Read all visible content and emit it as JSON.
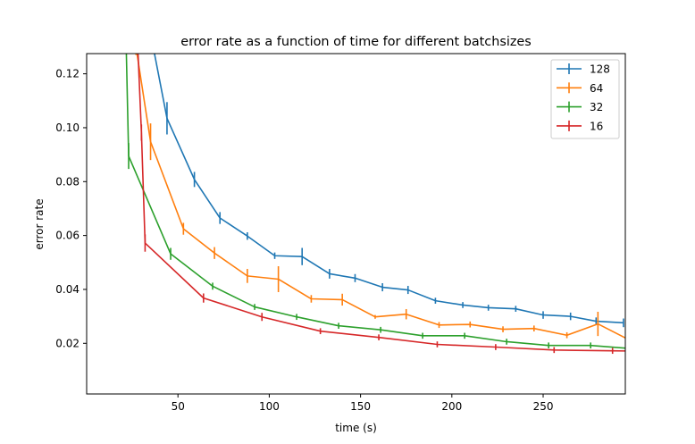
{
  "chart_data": {
    "type": "line",
    "title": "error rate as a function of time for different batchsizes",
    "xlabel": "time (s)",
    "ylabel": "error rate",
    "xlim": [
      0,
      295
    ],
    "ylim": [
      0.0012,
      0.1275
    ],
    "xticks": [
      50,
      100,
      150,
      200,
      250
    ],
    "xtick_labels": [
      "50",
      "100",
      "150",
      "200",
      "250"
    ],
    "yticks": [
      0.02,
      0.04,
      0.06,
      0.08,
      0.1,
      0.12
    ],
    "ytick_labels": [
      "0.02",
      "0.04",
      "0.06",
      "0.08",
      "0.10",
      "0.12"
    ],
    "grid": false,
    "legend_position": "top-right",
    "error_bars": true,
    "series": [
      {
        "name": "128",
        "color": "#1f77b4",
        "x": [
          30,
          44,
          59,
          73,
          88,
          103,
          118,
          133,
          147,
          162,
          176,
          191,
          206,
          220,
          235,
          250,
          265,
          279,
          294
        ],
        "y": [
          0.1525,
          0.1035,
          0.0808,
          0.0665,
          0.0598,
          0.0525,
          0.0522,
          0.0458,
          0.0442,
          0.0408,
          0.0398,
          0.0358,
          0.0342,
          0.0332,
          0.0328,
          0.0305,
          0.03,
          0.0282,
          0.0276
        ],
        "err": [
          0.004,
          0.006,
          0.0028,
          0.0022,
          0.0014,
          0.0012,
          0.0032,
          0.0018,
          0.0015,
          0.0015,
          0.0015,
          0.0011,
          0.0011,
          0.0011,
          0.0011,
          0.0014,
          0.0014,
          0.0014,
          0.0016
        ]
      },
      {
        "name": "64",
        "color": "#ff7f0e",
        "x": [
          27,
          35,
          53,
          70,
          88,
          105,
          123,
          140,
          158,
          175,
          193,
          210,
          228,
          245,
          263,
          280,
          297
        ],
        "y": [
          0.13,
          0.0948,
          0.0625,
          0.0535,
          0.045,
          0.0438,
          0.0365,
          0.0362,
          0.0298,
          0.0308,
          0.0268,
          0.027,
          0.0252,
          0.0255,
          0.023,
          0.0272,
          0.0213
        ],
        "err": [
          0.003,
          0.0068,
          0.0022,
          0.0022,
          0.0026,
          0.0048,
          0.0014,
          0.0022,
          0.0007,
          0.0019,
          0.0011,
          0.0011,
          0.0011,
          0.0011,
          0.0011,
          0.0045,
          0.0011
        ]
      },
      {
        "name": "32",
        "color": "#2ca02c",
        "x": [
          21,
          23,
          46,
          69,
          92,
          115,
          138,
          161,
          184,
          207,
          230,
          253,
          276,
          299
        ],
        "y": [
          0.15,
          0.0895,
          0.0532,
          0.0412,
          0.0335,
          0.0298,
          0.0265,
          0.025,
          0.0228,
          0.0228,
          0.0206,
          0.0192,
          0.0192,
          0.018
        ],
        "err": [
          0.003,
          0.0048,
          0.0022,
          0.0013,
          0.0011,
          0.0011,
          0.0011,
          0.0011,
          0.0011,
          0.0011,
          0.0011,
          0.0011,
          0.0011,
          0.0011
        ]
      },
      {
        "name": "16",
        "color": "#d62728",
        "x": [
          28,
          30,
          32,
          64,
          96,
          128,
          160,
          192,
          224,
          256,
          288,
          320
        ],
        "y": [
          0.13,
          0.0982,
          0.0572,
          0.0368,
          0.0298,
          0.0245,
          0.0222,
          0.0196,
          0.0186,
          0.0175,
          0.0172,
          0.017
        ],
        "err": [
          0.003,
          0.003,
          0.0032,
          0.0017,
          0.0015,
          0.0011,
          0.0011,
          0.0011,
          0.0011,
          0.0011,
          0.0011,
          0.0011
        ]
      }
    ]
  }
}
